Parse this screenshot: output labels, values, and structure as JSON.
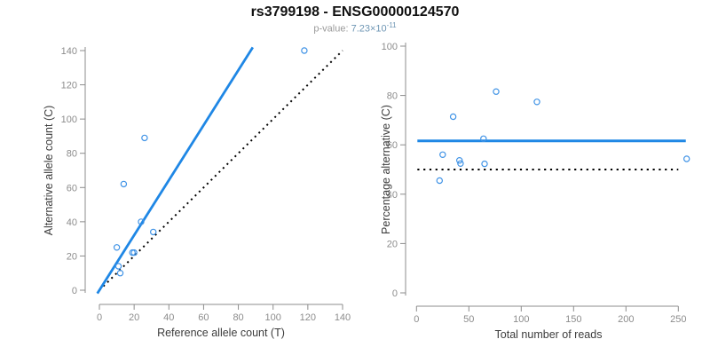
{
  "header": {
    "title": "rs3799198 - ENSG00000124570",
    "pvalue_label": "p-value:",
    "pvalue_value": "7.23×10",
    "pvalue_exponent": "-11"
  },
  "colors": {
    "line_blue": "#1f87e5",
    "point_blue": "#4093e6",
    "dotted_black": "#000000",
    "axis_gray": "#8c8c8c",
    "tick_label_gray": "#8c8c8c",
    "axis_title_dark": "#3c3c3c"
  },
  "chart_data": [
    {
      "type": "scatter",
      "panel": "left",
      "xlabel": "Reference allele count (T)",
      "ylabel": "Alternative allele count (C)",
      "xlim": [
        0,
        140
      ],
      "ylim": [
        0,
        140
      ],
      "xticks": [
        0,
        20,
        40,
        60,
        80,
        100,
        120,
        140
      ],
      "yticks": [
        0,
        20,
        40,
        60,
        80,
        100,
        120,
        140
      ],
      "grid": false,
      "points": [
        [
          11,
          14
        ],
        [
          12,
          10
        ],
        [
          10,
          25
        ],
        [
          19,
          22
        ],
        [
          20,
          22
        ],
        [
          24,
          40
        ],
        [
          31,
          34
        ],
        [
          14,
          62
        ],
        [
          26,
          89
        ],
        [
          118,
          140
        ]
      ],
      "regression_line": {
        "slope": 1.607,
        "intercept": 0,
        "style": "solid",
        "color": "blue"
      },
      "identity_line": {
        "from": [
          0,
          0
        ],
        "to": [
          140,
          140
        ],
        "style": "dotted",
        "color": "black"
      }
    },
    {
      "type": "scatter",
      "panel": "right",
      "xlabel": "Total number of reads",
      "ylabel": "Percentage alternative (C)",
      "xlim": [
        0,
        258
      ],
      "ylim": [
        0,
        100
      ],
      "xticks": [
        0,
        50,
        100,
        150,
        200,
        250
      ],
      "yticks": [
        0,
        20,
        40,
        60,
        80,
        100
      ],
      "grid": false,
      "points": [
        [
          25,
          56.0
        ],
        [
          22,
          45.5
        ],
        [
          35,
          71.4
        ],
        [
          41,
          53.7
        ],
        [
          42,
          52.4
        ],
        [
          64,
          62.5
        ],
        [
          65,
          52.3
        ],
        [
          76,
          81.6
        ],
        [
          115,
          77.4
        ],
        [
          258,
          54.3
        ]
      ],
      "mean_line": {
        "value": 61.6,
        "style": "solid",
        "color": "blue"
      },
      "reference_line": {
        "value": 50,
        "style": "dotted",
        "color": "black"
      }
    }
  ]
}
